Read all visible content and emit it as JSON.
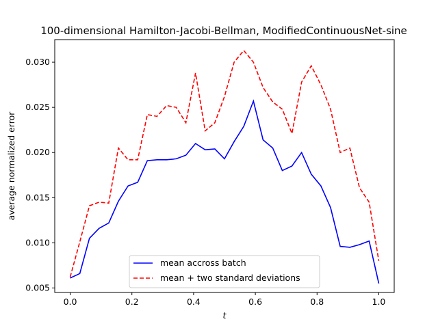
{
  "chart_data": {
    "type": "line",
    "title": "100-dimensional Hamilton-Jacobi-Bellman, ModifiedContinuousNet-sine",
    "xlabel": "t",
    "ylabel": "average normalized error",
    "xlim": [
      -0.05,
      1.05
    ],
    "ylim": [
      0.0045,
      0.0325
    ],
    "xticks": [
      0.0,
      0.2,
      0.4,
      0.6,
      0.8,
      1.0
    ],
    "xtick_labels": [
      "0.0",
      "0.2",
      "0.4",
      "0.6",
      "0.8",
      "1.0"
    ],
    "yticks": [
      0.005,
      0.01,
      0.015,
      0.02,
      0.025,
      0.03
    ],
    "ytick_labels": [
      "0.005",
      "0.010",
      "0.015",
      "0.020",
      "0.025",
      "0.030"
    ],
    "grid": false,
    "legend_position": "lower-center",
    "x": [
      0.0,
      0.03125,
      0.0625,
      0.09375,
      0.125,
      0.15625,
      0.1875,
      0.21875,
      0.25,
      0.28125,
      0.3125,
      0.34375,
      0.375,
      0.40625,
      0.4375,
      0.46875,
      0.5,
      0.53125,
      0.5625,
      0.59375,
      0.625,
      0.65625,
      0.6875,
      0.71875,
      0.75,
      0.78125,
      0.8125,
      0.84375,
      0.875,
      0.90625,
      0.9375,
      0.96875,
      1.0
    ],
    "series": [
      {
        "name": "mean accross batch",
        "color": "#0000ff",
        "style": "solid",
        "values": [
          0.0061,
          0.0066,
          0.0105,
          0.0116,
          0.0122,
          0.0146,
          0.0163,
          0.0167,
          0.0191,
          0.0192,
          0.0192,
          0.0193,
          0.0197,
          0.021,
          0.0203,
          0.0204,
          0.0193,
          0.0212,
          0.0229,
          0.0257,
          0.0214,
          0.0205,
          0.018,
          0.0185,
          0.02,
          0.0176,
          0.0163,
          0.0139,
          0.0096,
          0.0095,
          0.0098,
          0.0102,
          0.0055
        ]
      },
      {
        "name": "mean + two standard deviations",
        "color": "#ff0000",
        "style": "dashed",
        "values": [
          0.0062,
          0.0101,
          0.0141,
          0.0145,
          0.0144,
          0.0205,
          0.0192,
          0.0192,
          0.0242,
          0.024,
          0.0252,
          0.025,
          0.0233,
          0.0288,
          0.0224,
          0.0233,
          0.0262,
          0.03,
          0.0313,
          0.03,
          0.0272,
          0.0256,
          0.0248,
          0.0221,
          0.0278,
          0.0296,
          0.0275,
          0.0248,
          0.02,
          0.0205,
          0.0161,
          0.0145,
          0.008
        ]
      }
    ]
  }
}
